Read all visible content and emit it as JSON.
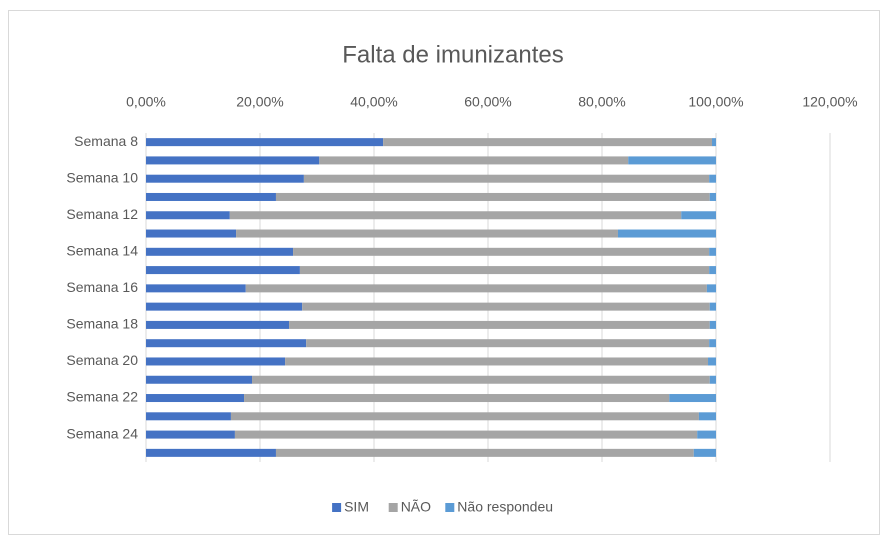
{
  "chart_data": {
    "type": "stacked_barh",
    "title": "Falta de imunizantes",
    "categories": [
      "Semana 8",
      null,
      "Semana 10",
      null,
      "Semana 12",
      null,
      "Semana 14",
      null,
      "Semana 16",
      null,
      "Semana 18",
      null,
      "Semana 20",
      null,
      "Semana 22",
      null,
      "Semana 24",
      null
    ],
    "series": [
      {
        "name": "SIM",
        "color": "#4472c4",
        "values": [
          41.6,
          30.4,
          27.7,
          22.8,
          14.7,
          15.8,
          25.8,
          27.0,
          17.5,
          27.4,
          25.1,
          28.1,
          24.4,
          18.6,
          17.2,
          14.9,
          15.6,
          22.8
        ]
      },
      {
        "name": "NÃO",
        "color": "#a5a5a5",
        "values": [
          57.7,
          54.2,
          71.1,
          76.1,
          79.2,
          67.0,
          73.0,
          71.8,
          80.9,
          71.5,
          73.8,
          70.7,
          74.2,
          80.3,
          74.6,
          82.1,
          81.1,
          73.3
        ]
      },
      {
        "name": "Não respondeu",
        "color": "#5b9bd5",
        "values": [
          0.7,
          15.4,
          1.2,
          1.1,
          6.1,
          17.2,
          1.2,
          1.2,
          1.6,
          1.1,
          1.1,
          1.2,
          1.4,
          1.1,
          8.2,
          3.0,
          3.3,
          3.9
        ]
      }
    ],
    "xlim": [
      0,
      120
    ],
    "xticks": [
      {
        "value": 0,
        "label": "0,00%"
      },
      {
        "value": 20,
        "label": "20,00%"
      },
      {
        "value": 40,
        "label": "40,00%"
      },
      {
        "value": 60,
        "label": "60,00%"
      },
      {
        "value": 80,
        "label": "80,00%"
      },
      {
        "value": 100,
        "label": "100,00%"
      },
      {
        "value": 120,
        "label": "120,00%"
      }
    ],
    "grid": true,
    "legend": "bottom"
  }
}
